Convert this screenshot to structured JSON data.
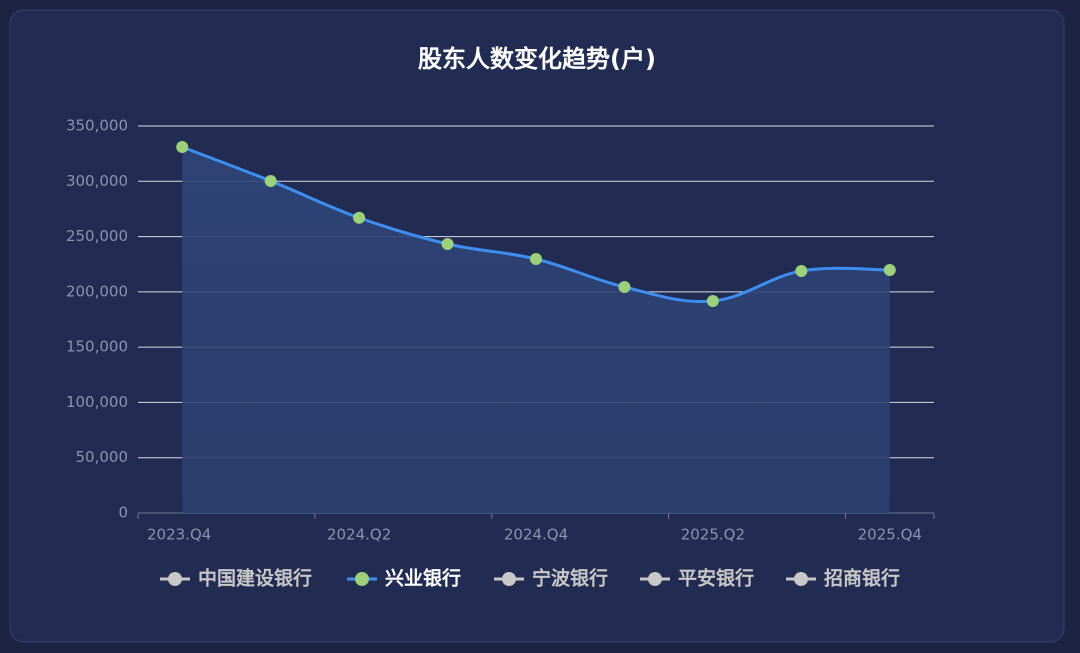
{
  "chart_data": {
    "type": "line",
    "title": "股东人数变化趋势(户)",
    "categories": [
      "2023.Q4",
      null,
      "2024.Q2",
      null,
      "2024.Q4",
      null,
      "2025.Q2",
      null,
      "2025.Q4"
    ],
    "series": [
      {
        "name": "中国建设银行",
        "color": "#c8c8c8",
        "visible": false
      },
      {
        "name": "兴业银行",
        "color": "#3d8ef0",
        "marker_color": "#9dd07a",
        "visible": true,
        "values": [
          331000,
          300300,
          267000,
          243300,
          229700,
          204400,
          191700,
          218900,
          219800
        ]
      },
      {
        "name": "宁波银行",
        "color": "#c8c8c8",
        "visible": false
      },
      {
        "name": "平安银行",
        "color": "#c8c8c8",
        "visible": false
      },
      {
        "name": "招商银行",
        "color": "#c8c8c8",
        "visible": false
      }
    ],
    "ylim": [
      0,
      350000
    ],
    "yticks": [
      0,
      {
        "value": 50000,
        "label": "50,000"
      },
      {
        "value": 100000,
        "label": "100,000"
      },
      {
        "value": 150000,
        "label": "150,000"
      },
      {
        "value": 200000,
        "label": "200,000"
      },
      {
        "value": 250000,
        "label": "250,000"
      },
      {
        "value": 300000,
        "label": "300,000"
      },
      {
        "value": 350000,
        "label": "350,000"
      }
    ],
    "grid": true,
    "legend": "bottom"
  }
}
